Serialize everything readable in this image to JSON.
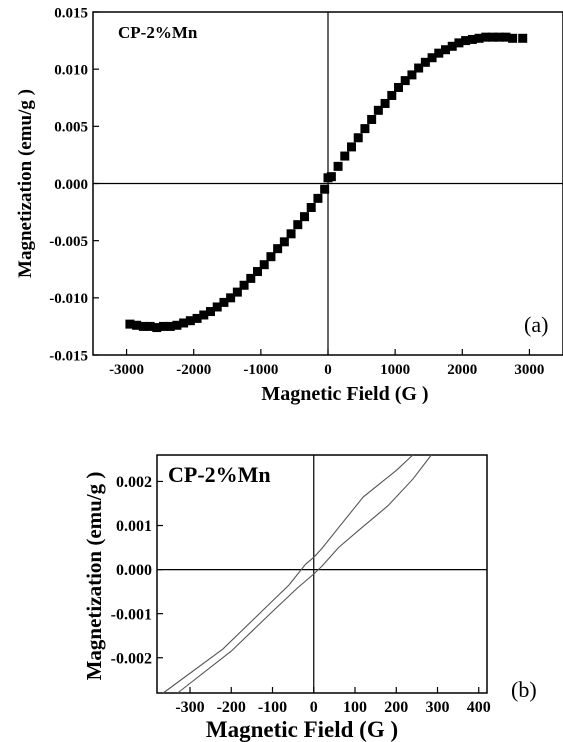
{
  "chart_data": [
    {
      "type": "scatter",
      "panel": "(a)",
      "title": "",
      "annotation": "CP-2%Mn",
      "xlabel": "Magnetic Field (G )",
      "ylabel": "Magnetization (emu/g )",
      "xlim": [
        -3500,
        3500
      ],
      "ylim": [
        -0.015,
        0.015
      ],
      "xticks": [
        -3000,
        -2000,
        -1000,
        0,
        1000,
        2000,
        3000
      ],
      "xtick_labels": [
        "-3000",
        "-2000",
        "-1000",
        "0",
        "1000",
        "2000",
        "3000"
      ],
      "yticks": [
        -0.015,
        -0.01,
        -0.005,
        0,
        0.005,
        0.01,
        0.015
      ],
      "ytick_labels": [
        "-0.015",
        "-0.010",
        "-0.005",
        "0.000",
        "0.005",
        "0.010",
        "0.015"
      ],
      "marker": "square",
      "color": "#000000",
      "series": [
        {
          "x": [
            -2950,
            -2850,
            -2750,
            -2650,
            -2550,
            -2450,
            -2350,
            -2250,
            -2150,
            -2050,
            -1950,
            -1850,
            -1750,
            -1650,
            -1550,
            -1450,
            -1350,
            -1250,
            -1150,
            -1050,
            -950,
            -850,
            -750,
            -650,
            -550,
            -450,
            -350,
            -250,
            -150,
            -50,
            0,
            50,
            150,
            250,
            350,
            450,
            550,
            650,
            750,
            850,
            950,
            1050,
            1150,
            1250,
            1350,
            1450,
            1550,
            1650,
            1750,
            1850,
            1950,
            2050,
            2150,
            2250,
            2350,
            2450,
            2550,
            2650,
            2750,
            2900
          ],
          "y": [
            -0.0123,
            -0.0124,
            -0.0125,
            -0.0125,
            -0.0126,
            -0.0125,
            -0.0125,
            -0.0124,
            -0.0122,
            -0.012,
            -0.0118,
            -0.0115,
            -0.0112,
            -0.0108,
            -0.0104,
            -0.01,
            -0.0095,
            -0.0089,
            -0.0083,
            -0.0077,
            -0.0071,
            -0.0064,
            -0.0057,
            -0.0051,
            -0.0044,
            -0.0036,
            -0.0029,
            -0.0021,
            -0.0013,
            -0.0005,
            0.0005,
            0.0006,
            0.0015,
            0.0024,
            0.0032,
            0.004,
            0.0048,
            0.0056,
            0.0064,
            0.007,
            0.0077,
            0.0084,
            0.009,
            0.0095,
            0.0101,
            0.0106,
            0.011,
            0.0114,
            0.0117,
            0.012,
            0.0123,
            0.0125,
            0.0126,
            0.0127,
            0.0128,
            0.0128,
            0.0128,
            0.0128,
            0.0127,
            0.0127
          ]
        }
      ]
    },
    {
      "type": "line",
      "panel": "(b)",
      "title": "",
      "annotation": "CP-2%Mn",
      "xlabel": "Magnetic Field (G )",
      "ylabel": "Magnetization (emu/g )",
      "xlim": [
        -380,
        420
      ],
      "ylim": [
        -0.0028,
        0.0026
      ],
      "xticks": [
        -300,
        -200,
        -100,
        0,
        100,
        200,
        300,
        400
      ],
      "xtick_labels": [
        "-300",
        "-200",
        "-100",
        "0",
        "100",
        "200",
        "300",
        "400"
      ],
      "yticks": [
        -0.002,
        -0.001,
        0,
        0.001,
        0.002
      ],
      "ytick_labels": [
        "-0.002",
        "-0.001",
        "0.000",
        "0.001",
        "0.002"
      ],
      "color": "#555555",
      "series": [
        {
          "x": [
            -365,
            -220,
            -110,
            -60,
            -20,
            0,
            20,
            60,
            120,
            200,
            240
          ],
          "y": [
            -0.0028,
            -0.0018,
            -0.0008,
            -0.00035,
            0.00012,
            0.00028,
            0.00048,
            0.00095,
            0.00165,
            0.00225,
            0.0026
          ]
        },
        {
          "x": [
            -330,
            -200,
            -100,
            -40,
            0,
            20,
            60,
            110,
            180,
            240,
            285
          ],
          "y": [
            -0.0028,
            -0.00185,
            -0.00095,
            -0.00042,
            -0.0001,
            8e-05,
            0.0005,
            0.0009,
            0.00145,
            0.00205,
            0.0026
          ]
        }
      ]
    }
  ]
}
